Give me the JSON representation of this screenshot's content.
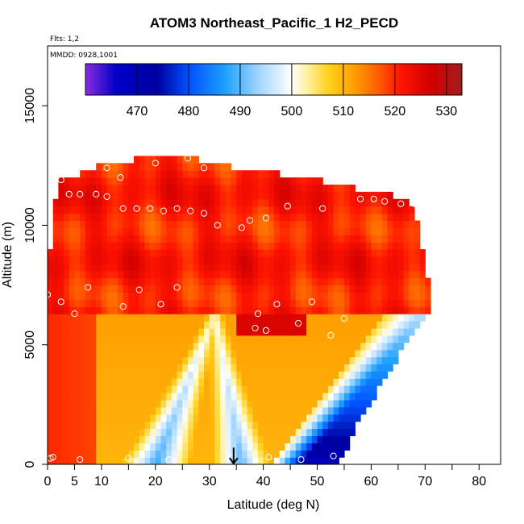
{
  "chart_data": {
    "type": "heatmap",
    "title": "ATOM3 Northeast_Pacific_1 H2_PECD",
    "subtitle_flights": "Flts: 1,2",
    "subtitle_dates": "MMDD: 0928,1001",
    "xlabel": "Latitude (deg N)",
    "ylabel": "Altitude (m)",
    "xlim": [
      0,
      84
    ],
    "ylim": [
      0,
      17500
    ],
    "x_ticks": [
      0,
      5,
      10,
      20,
      30,
      40,
      50,
      60,
      70,
      80
    ],
    "x_tick_labels": [
      "0",
      "5",
      "10",
      "20",
      "30",
      "40",
      "50",
      "60",
      "70",
      "80"
    ],
    "x_minor_ticks": [
      15,
      25,
      35,
      45,
      55,
      65,
      75
    ],
    "y_ticks": [
      0,
      5000,
      10000,
      15000
    ],
    "y_tick_labels": [
      "0",
      "5000",
      "10000",
      "15000"
    ],
    "colorbar": {
      "min": 460,
      "max": 533,
      "ticks": [
        470,
        480,
        490,
        500,
        510,
        520,
        530
      ],
      "tick_labels": [
        "470",
        "480",
        "490",
        "500",
        "510",
        "520",
        "530"
      ],
      "stops": [
        {
          "v": 460,
          "c": "#8a2be2"
        },
        {
          "v": 466,
          "c": "#0000c8"
        },
        {
          "v": 474,
          "c": "#0000a0"
        },
        {
          "v": 480,
          "c": "#0050ff"
        },
        {
          "v": 487,
          "c": "#1ea0ff"
        },
        {
          "v": 494,
          "c": "#a8d8ff"
        },
        {
          "v": 500,
          "c": "#ffffff"
        },
        {
          "v": 503,
          "c": "#fff0a0"
        },
        {
          "v": 507,
          "c": "#ffd21e"
        },
        {
          "v": 512,
          "c": "#ffa000"
        },
        {
          "v": 517,
          "c": "#ff5a00"
        },
        {
          "v": 521,
          "c": "#ff1500"
        },
        {
          "v": 527,
          "c": "#d20000"
        },
        {
          "v": 533,
          "c": "#a01e1e"
        }
      ]
    },
    "field_model": {
      "lower_boundary_altitude": 6300,
      "lat_range": [
        0,
        71
      ],
      "top_altitude_by_lat": [
        {
          "lat": 0,
          "alt": 7800
        },
        {
          "lat": 1.5,
          "alt": 11000
        },
        {
          "lat": 2.5,
          "alt": 11900
        },
        {
          "lat": 10,
          "alt": 12500
        },
        {
          "lat": 19,
          "alt": 12900
        },
        {
          "lat": 27,
          "alt": 12900
        },
        {
          "lat": 28,
          "alt": 12600
        },
        {
          "lat": 39,
          "alt": 12300
        },
        {
          "lat": 52,
          "alt": 11800
        },
        {
          "lat": 65,
          "alt": 11200
        },
        {
          "lat": 68,
          "alt": 10800
        },
        {
          "lat": 70,
          "alt": 8500
        },
        {
          "lat": 71,
          "alt": 7000
        }
      ],
      "surface_extent_by_alt": [
        {
          "alt": 0,
          "lat": 54
        },
        {
          "alt": 1500,
          "lat": 57
        },
        {
          "alt": 3000,
          "lat": 61
        },
        {
          "alt": 4500,
          "lat": 65
        },
        {
          "alt": 5500,
          "lat": 68
        },
        {
          "alt": 6300,
          "lat": 71
        }
      ],
      "low_value_tongues": [
        {
          "lat_at_surface": 20,
          "lat_at_6000m": 31,
          "min_value": 488
        },
        {
          "lat_at_surface": 36,
          "lat_at_6000m": 31,
          "min_value": 490
        },
        {
          "lat_at_surface": 47,
          "lat_at_6000m": 69,
          "min_value": 470
        }
      ],
      "upper_value": 521,
      "lower_background_value": 510,
      "southern_edge_value": 520
    },
    "observations": [
      {
        "lat": 0.5,
        "alt": 250
      },
      {
        "lat": 1,
        "alt": 300
      },
      {
        "lat": 6,
        "alt": 200
      },
      {
        "lat": 15,
        "alt": 250
      },
      {
        "lat": 22.5,
        "alt": 200
      },
      {
        "lat": 34,
        "alt": 250
      },
      {
        "lat": 41,
        "alt": 300
      },
      {
        "lat": 47,
        "alt": 200
      },
      {
        "lat": 53,
        "alt": 350
      },
      {
        "lat": 0,
        "alt": 7100
      },
      {
        "lat": 2.5,
        "alt": 6800
      },
      {
        "lat": 5,
        "alt": 6300
      },
      {
        "lat": 7.5,
        "alt": 7400
      },
      {
        "lat": 14,
        "alt": 6600
      },
      {
        "lat": 17,
        "alt": 7300
      },
      {
        "lat": 21,
        "alt": 6700
      },
      {
        "lat": 24,
        "alt": 7400
      },
      {
        "lat": 39,
        "alt": 6300
      },
      {
        "lat": 38.5,
        "alt": 5700
      },
      {
        "lat": 40.5,
        "alt": 5600
      },
      {
        "lat": 42.5,
        "alt": 6700
      },
      {
        "lat": 46.5,
        "alt": 5900
      },
      {
        "lat": 49,
        "alt": 6800
      },
      {
        "lat": 52.5,
        "alt": 5400
      },
      {
        "lat": 55,
        "alt": 6100
      },
      {
        "lat": 2.5,
        "alt": 11900
      },
      {
        "lat": 4,
        "alt": 11300
      },
      {
        "lat": 6,
        "alt": 11300
      },
      {
        "lat": 9,
        "alt": 11300
      },
      {
        "lat": 11,
        "alt": 11200
      },
      {
        "lat": 11,
        "alt": 12400
      },
      {
        "lat": 13.5,
        "alt": 12000
      },
      {
        "lat": 20,
        "alt": 12600
      },
      {
        "lat": 26,
        "alt": 12800
      },
      {
        "lat": 29,
        "alt": 12400
      },
      {
        "lat": 14,
        "alt": 10700
      },
      {
        "lat": 16.5,
        "alt": 10700
      },
      {
        "lat": 19,
        "alt": 10700
      },
      {
        "lat": 21.5,
        "alt": 10600
      },
      {
        "lat": 24,
        "alt": 10700
      },
      {
        "lat": 26.5,
        "alt": 10600
      },
      {
        "lat": 29,
        "alt": 10500
      },
      {
        "lat": 31.5,
        "alt": 10000
      },
      {
        "lat": 36,
        "alt": 9900
      },
      {
        "lat": 37.5,
        "alt": 10200
      },
      {
        "lat": 40.5,
        "alt": 10300
      },
      {
        "lat": 44.5,
        "alt": 10800
      },
      {
        "lat": 51,
        "alt": 10700
      },
      {
        "lat": 58,
        "alt": 11100
      },
      {
        "lat": 60.5,
        "alt": 11100
      },
      {
        "lat": 62.5,
        "alt": 11000
      },
      {
        "lat": 65.5,
        "alt": 10900
      },
      {
        "lat": 68,
        "alt": 10900
      }
    ],
    "marker": {
      "type": "down-arrow",
      "lat": 34.5,
      "alt_top": 700,
      "alt_bottom": 0
    }
  }
}
